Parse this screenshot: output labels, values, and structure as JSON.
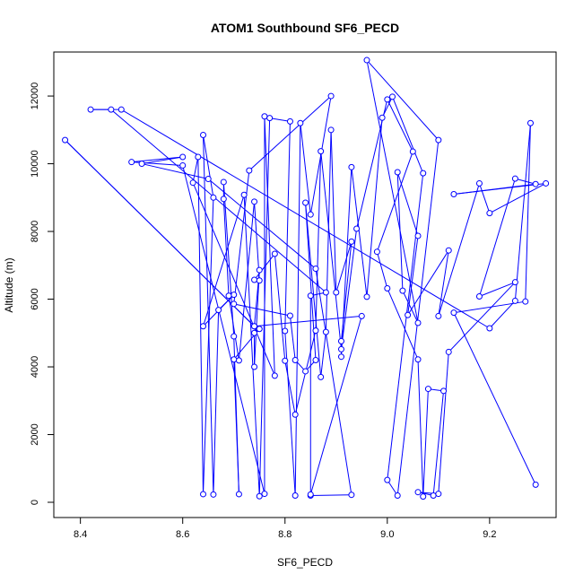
{
  "chart_data": {
    "type": "scatter",
    "title": "ATOM1 Southbound SF6_PECD",
    "xlabel": "SF6_PECD",
    "ylabel": "Altitude (m)",
    "xlim": [
      8.348,
      9.33
    ],
    "ylim": [
      -450,
      13300
    ],
    "xticks": [
      8.4,
      8.6,
      8.8,
      9.0,
      9.2
    ],
    "xtick_labels": [
      "8.4",
      "8.6",
      "8.8",
      "9.0",
      "9.2"
    ],
    "yticks": [
      0,
      2000,
      4000,
      6000,
      8000,
      10000,
      12000
    ],
    "ytick_labels": [
      "0",
      "2000",
      "4000",
      "6000",
      "8000",
      "10000",
      "12000"
    ],
    "grid": false,
    "legend": "none",
    "series": [
      {
        "color": "#0000ff",
        "style": "line+open-circle",
        "points": [
          [
            9.29,
            520
          ],
          [
            9.13,
            5600
          ],
          [
            9.27,
            5930
          ],
          [
            9.28,
            11200
          ],
          [
            9.25,
            5950
          ],
          [
            9.2,
            5140
          ],
          [
            8.48,
            11600
          ],
          [
            8.42,
            11600
          ],
          [
            8.46,
            11600
          ],
          [
            8.88,
            6200
          ],
          [
            8.85,
            6100
          ],
          [
            8.85,
            200
          ],
          [
            8.93,
            220
          ],
          [
            8.86,
            6900
          ],
          [
            8.65,
            9550
          ],
          [
            8.52,
            10000
          ],
          [
            8.6,
            10200
          ],
          [
            8.5,
            10050
          ],
          [
            8.6,
            9950
          ],
          [
            8.76,
            250
          ],
          [
            8.76,
            11400
          ],
          [
            8.78,
            3740
          ],
          [
            8.62,
            9440
          ],
          [
            8.63,
            10200
          ],
          [
            8.64,
            240
          ],
          [
            8.66,
            9000
          ],
          [
            8.64,
            10850
          ],
          [
            8.66,
            230
          ],
          [
            8.67,
            5680
          ],
          [
            8.7,
            6130
          ],
          [
            8.64,
            5200
          ],
          [
            8.72,
            9080
          ],
          [
            8.75,
            180
          ],
          [
            8.77,
            11350
          ],
          [
            8.81,
            11250
          ],
          [
            8.8,
            5060
          ],
          [
            8.82,
            200
          ],
          [
            8.83,
            11200
          ],
          [
            8.85,
            8500
          ],
          [
            8.89,
            12000
          ],
          [
            8.73,
            9800
          ],
          [
            8.7,
            5860
          ],
          [
            8.81,
            5510
          ],
          [
            8.82,
            4200
          ],
          [
            8.84,
            3870
          ],
          [
            8.86,
            4200
          ],
          [
            8.84,
            8850
          ],
          [
            8.87,
            3700
          ],
          [
            8.88,
            5030
          ],
          [
            8.89,
            11000
          ],
          [
            8.9,
            6200
          ],
          [
            8.93,
            7700
          ],
          [
            8.91,
            4760
          ],
          [
            8.91,
            4300
          ],
          [
            8.93,
            9900
          ],
          [
            8.96,
            6070
          ],
          [
            8.99,
            11360
          ],
          [
            9.01,
            11980
          ],
          [
            9.07,
            9720
          ],
          [
            9.0,
            660
          ],
          [
            9.02,
            200
          ],
          [
            9.1,
            10700
          ],
          [
            8.96,
            13060
          ],
          [
            9.06,
            5300
          ],
          [
            9.03,
            6250
          ],
          [
            9.02,
            9750
          ],
          [
            9.06,
            7870
          ],
          [
            9.04,
            5530
          ],
          [
            9.12,
            7440
          ],
          [
            9.1,
            5500
          ],
          [
            9.18,
            9420
          ],
          [
            9.2,
            8540
          ],
          [
            9.31,
            9420
          ],
          [
            9.13,
            9100
          ],
          [
            9.29,
            9400
          ],
          [
            9.25,
            9560
          ],
          [
            9.18,
            6080
          ],
          [
            9.25,
            6500
          ],
          [
            9.12,
            4440
          ],
          [
            9.1,
            250
          ],
          [
            9.06,
            300
          ],
          [
            9.09,
            200
          ],
          [
            9.11,
            3290
          ],
          [
            9.08,
            3350
          ],
          [
            9.07,
            170
          ],
          [
            9.06,
            4220
          ],
          [
            9.0,
            6320
          ],
          [
            8.98,
            7400
          ],
          [
            9.05,
            10360
          ],
          [
            9.0,
            11900
          ],
          [
            8.94,
            8080
          ],
          [
            8.91,
            4520
          ],
          [
            8.87,
            10370
          ],
          [
            8.86,
            5070
          ],
          [
            8.82,
            2590
          ],
          [
            8.8,
            4180
          ],
          [
            8.78,
            7340
          ],
          [
            8.74,
            6570
          ],
          [
            8.75,
            6550
          ],
          [
            8.74,
            8880
          ],
          [
            8.71,
            4190
          ],
          [
            8.69,
            6100
          ],
          [
            8.68,
            8960
          ],
          [
            8.68,
            9460
          ],
          [
            8.7,
            4900
          ],
          [
            8.71,
            240
          ],
          [
            8.7,
            4220
          ],
          [
            8.75,
            5120
          ],
          [
            8.74,
            5000
          ],
          [
            8.74,
            4000
          ],
          [
            8.75,
            6860
          ],
          [
            8.74,
            5200
          ],
          [
            8.37,
            10700
          ],
          [
            8.74,
            5200
          ],
          [
            8.95,
            5500
          ],
          [
            8.85,
            230
          ]
        ]
      }
    ]
  }
}
